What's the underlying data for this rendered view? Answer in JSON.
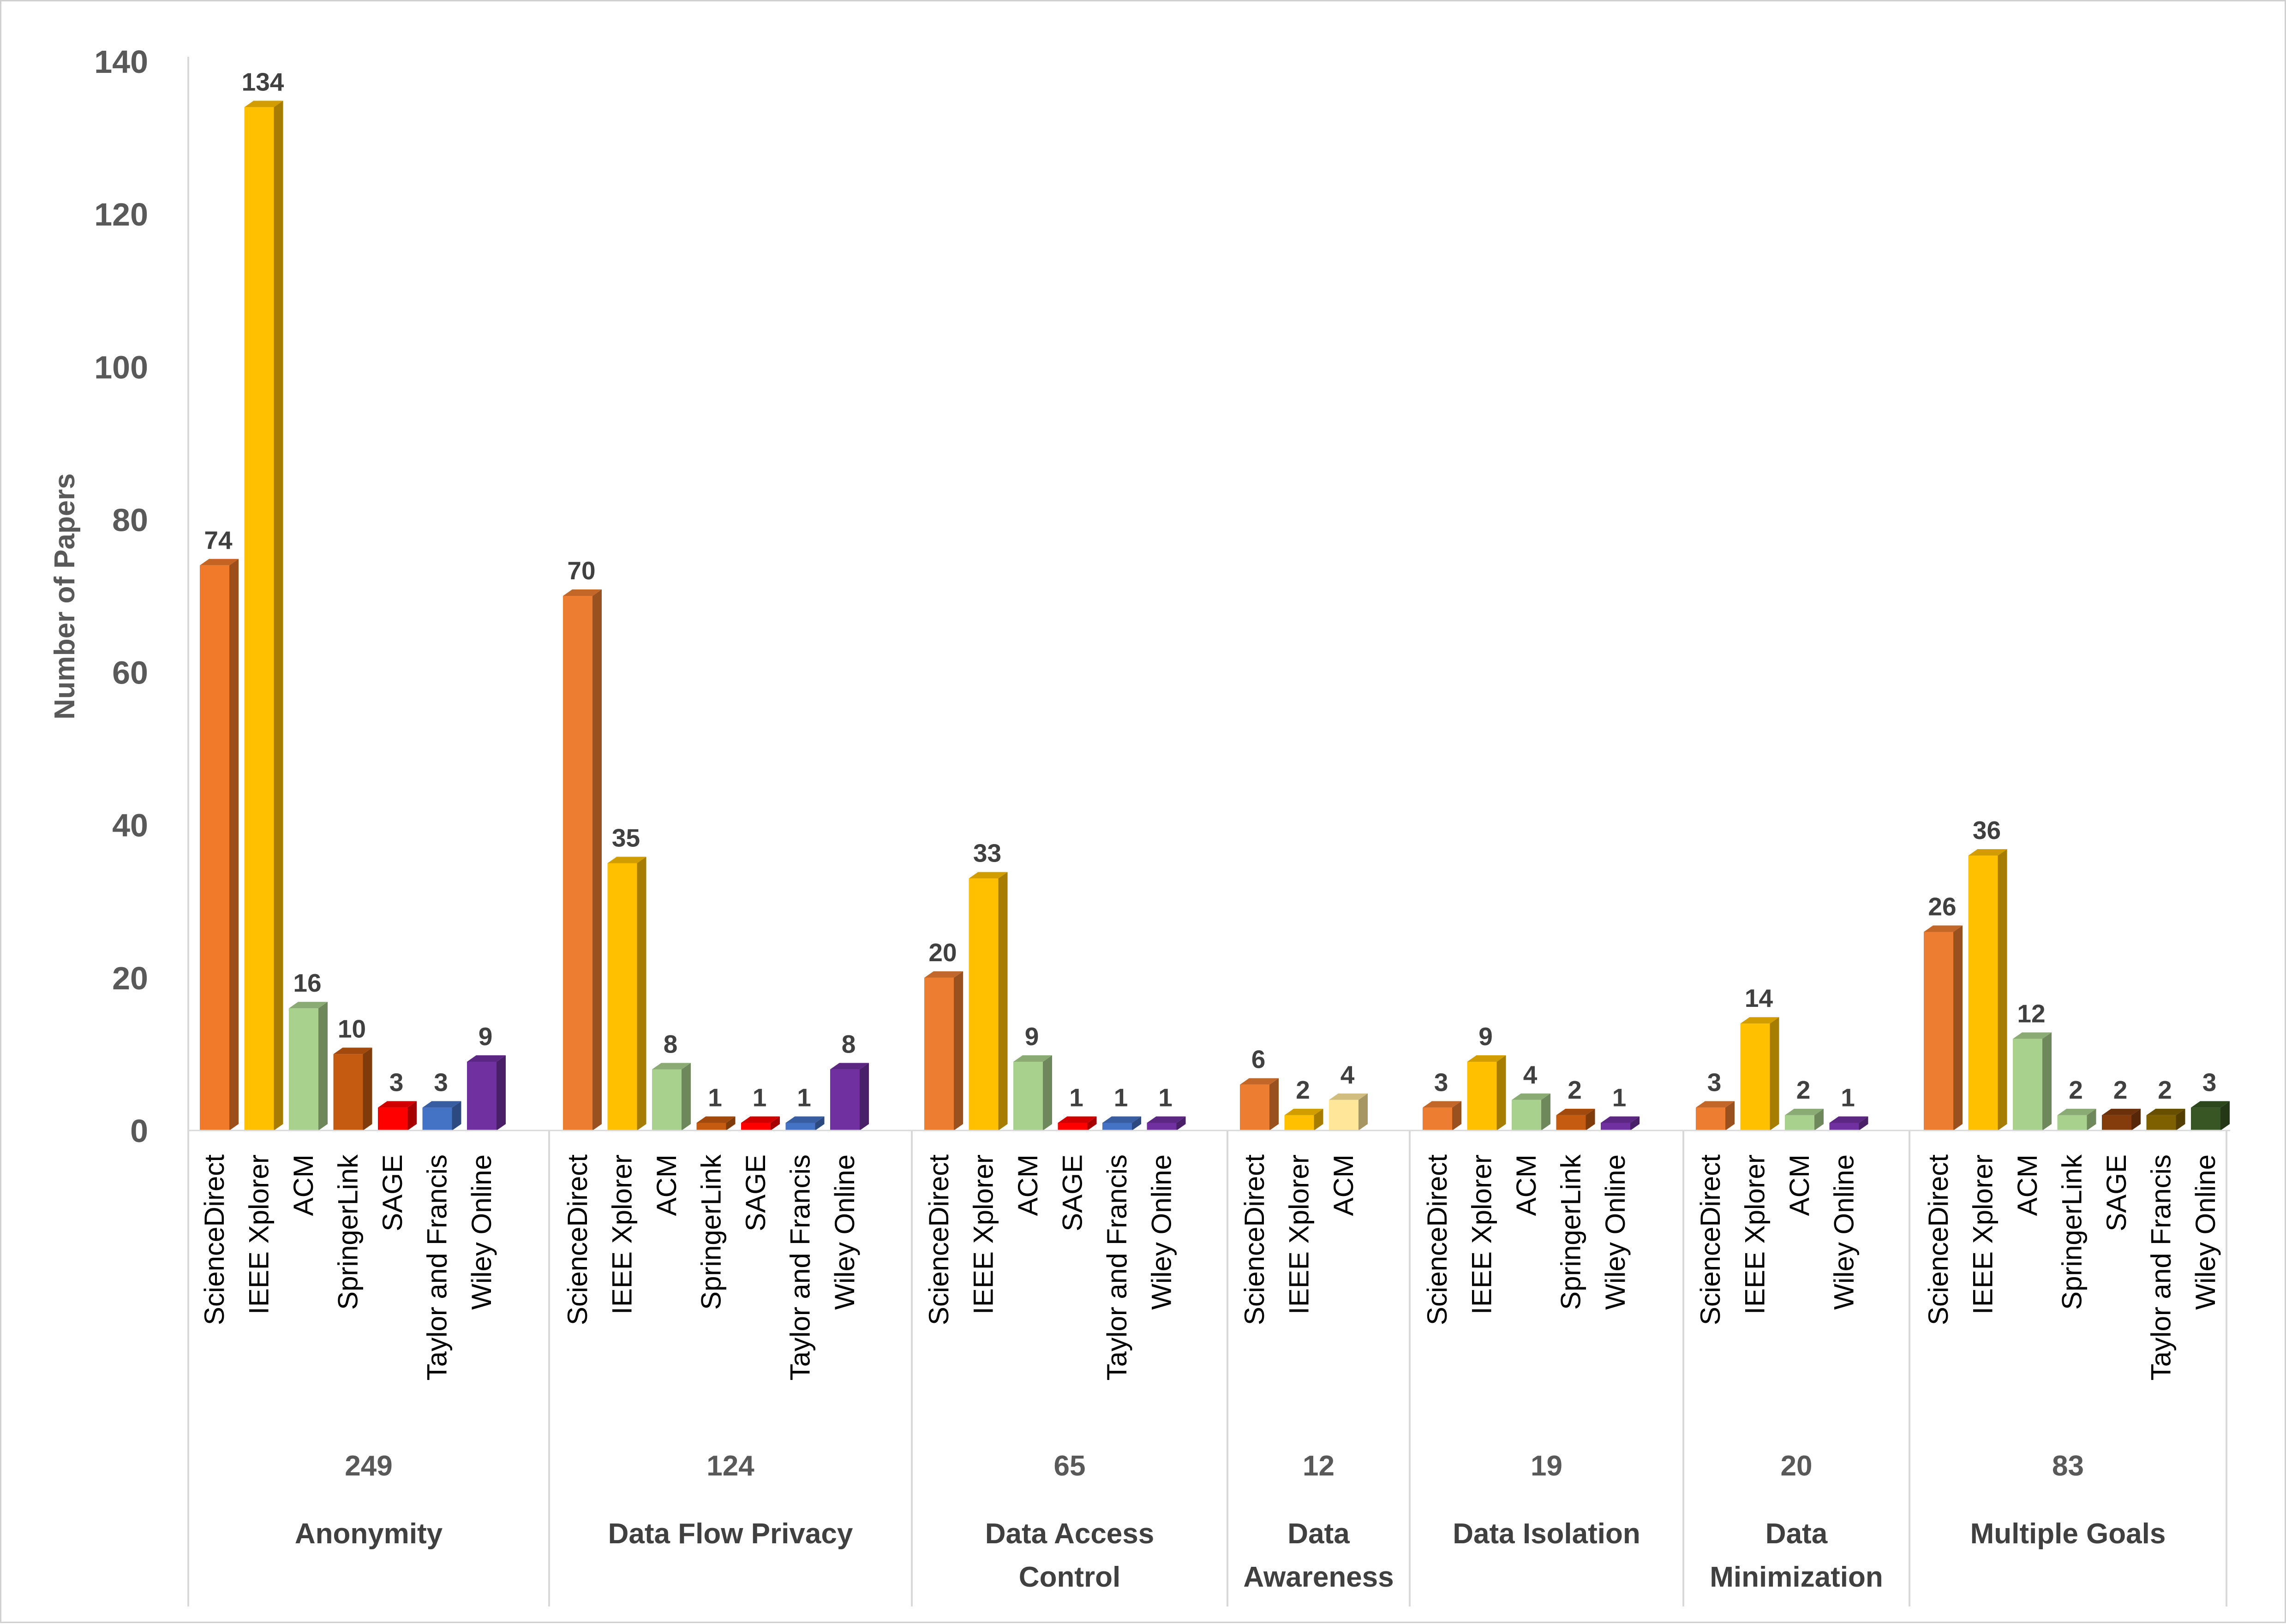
{
  "chart_data": {
    "type": "bar",
    "title": "",
    "xlabel": "",
    "ylabel": "Number of Papers",
    "ylim": [
      0,
      140
    ],
    "yticks": [
      0,
      20,
      40,
      60,
      80,
      100,
      120,
      140
    ],
    "grid": false,
    "legend": "none",
    "groups": [
      {
        "name": "Anonymity",
        "total": "249",
        "bars": [
          {
            "source": "ScienceDirect",
            "value": 74,
            "color": "#F07A2A"
          },
          {
            "source": "IEEE Xplorer",
            "value": 134,
            "color": "#FFC000"
          },
          {
            "source": "ACM",
            "value": 16,
            "color": "#A9D18E"
          },
          {
            "source": "SpringerLink",
            "value": 10,
            "color": "#C55A11"
          },
          {
            "source": "SAGE",
            "value": 3,
            "color": "#FF0000"
          },
          {
            "source": "Taylor and Francis",
            "value": 3,
            "color": "#4472C4"
          },
          {
            "source": "Wiley Online",
            "value": 9,
            "color": "#7030A0"
          }
        ]
      },
      {
        "name": "Data Flow Privacy",
        "total": "124",
        "bars": [
          {
            "source": "ScienceDirect",
            "value": 70,
            "color": "#ED7D31"
          },
          {
            "source": "IEEE Xplorer",
            "value": 35,
            "color": "#FFC000"
          },
          {
            "source": "ACM",
            "value": 8,
            "color": "#A9D18E"
          },
          {
            "source": "SpringerLink",
            "value": 1,
            "color": "#C55A11"
          },
          {
            "source": "SAGE",
            "value": 1,
            "color": "#FF0000"
          },
          {
            "source": "Taylor and Francis",
            "value": 1,
            "color": "#4472C4"
          },
          {
            "source": "Wiley Online",
            "value": 8,
            "color": "#7030A0"
          }
        ]
      },
      {
        "name": "Data Access Control",
        "name_lines": [
          "Data Access",
          "Control"
        ],
        "total": "65",
        "bars": [
          {
            "source": "ScienceDirect",
            "value": 20,
            "color": "#ED7D31"
          },
          {
            "source": "IEEE Xplorer",
            "value": 33,
            "color": "#FFC000"
          },
          {
            "source": "ACM",
            "value": 9,
            "color": "#A9D18E"
          },
          {
            "source": "SAGE",
            "value": 1,
            "color": "#FF0000"
          },
          {
            "source": "Taylor and Francis",
            "value": 1,
            "color": "#4472C4"
          },
          {
            "source": "Wiley Online",
            "value": 1,
            "color": "#7030A0"
          }
        ]
      },
      {
        "name": "Data Awareness",
        "name_lines": [
          "Data",
          "Awareness"
        ],
        "total": "12",
        "bars": [
          {
            "source": "ScienceDirect",
            "value": 6,
            "color": "#ED7D31"
          },
          {
            "source": "IEEE Xplorer",
            "value": 2,
            "color": "#FFC000"
          },
          {
            "source": "ACM",
            "value": 4,
            "color": "#FFE699"
          }
        ]
      },
      {
        "name": "Data Isolation",
        "total": "19",
        "bars": [
          {
            "source": "ScienceDirect",
            "value": 3,
            "color": "#ED7D31"
          },
          {
            "source": "IEEE Xplorer",
            "value": 9,
            "color": "#FFC000"
          },
          {
            "source": "ACM",
            "value": 4,
            "color": "#A9D18E"
          },
          {
            "source": "SpringerLink",
            "value": 2,
            "color": "#C55A11"
          },
          {
            "source": "Wiley Online",
            "value": 1,
            "color": "#7030A0"
          }
        ]
      },
      {
        "name": "Data Minimization",
        "name_lines": [
          "Data",
          "Minimization"
        ],
        "total": "20",
        "bars": [
          {
            "source": "ScienceDirect",
            "value": 3,
            "color": "#ED7D31"
          },
          {
            "source": "IEEE Xplorer",
            "value": 14,
            "color": "#FFC000"
          },
          {
            "source": "ACM",
            "value": 2,
            "color": "#A9D18E"
          },
          {
            "source": "Wiley Online",
            "value": 1,
            "color": "#7030A0"
          }
        ]
      },
      {
        "name": "Multiple Goals",
        "total": "83",
        "bars": [
          {
            "source": "ScienceDirect",
            "value": 26,
            "color": "#ED7D31"
          },
          {
            "source": "IEEE Xplorer",
            "value": 36,
            "color": "#FFC000"
          },
          {
            "source": "ACM",
            "value": 12,
            "color": "#A9D18E"
          },
          {
            "source": "SpringerLink",
            "value": 2,
            "color": "#A9D18E"
          },
          {
            "source": "SAGE",
            "value": 2,
            "color": "#843C0C"
          },
          {
            "source": "Taylor and Francis",
            "value": 2,
            "color": "#7F6000"
          },
          {
            "source": "Wiley Online",
            "value": 3,
            "color": "#375623"
          }
        ]
      }
    ]
  }
}
